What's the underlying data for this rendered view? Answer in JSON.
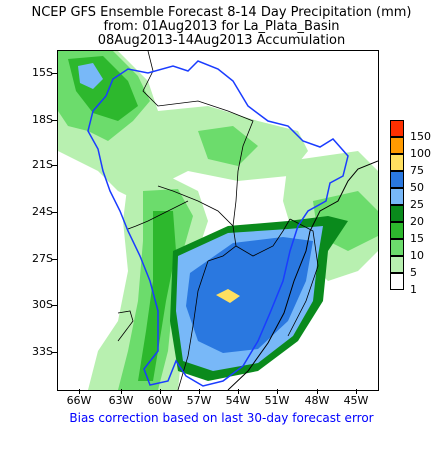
{
  "header": {
    "line1": "NCEP GFS Ensemble Forecast 8-14 Day Precipitation (mm)",
    "line2": "from: 01Aug2013   for La_Plata_Basin",
    "line3": "08Aug2013-14Aug2013 Accumulation"
  },
  "axes": {
    "lat_labels": [
      "15S",
      "18S",
      "21S",
      "24S",
      "27S",
      "30S",
      "33S"
    ],
    "lon_labels": [
      "66W",
      "63W",
      "60W",
      "57W",
      "54W",
      "51W",
      "48W",
      "45W"
    ]
  },
  "legend": {
    "items": [
      {
        "label": "150",
        "color": "#ff3000"
      },
      {
        "label": "100",
        "color": "#ff9a00"
      },
      {
        "label": "75",
        "color": "#ffe060"
      },
      {
        "label": "50",
        "color": "#2a78e0"
      },
      {
        "label": "25",
        "color": "#78b8f8"
      },
      {
        "label": "20",
        "color": "#0a8a1c"
      },
      {
        "label": "15",
        "color": "#2db82d"
      },
      {
        "label": "10",
        "color": "#6cdc6c"
      },
      {
        "label": "5",
        "color": "#b8f0b0"
      },
      {
        "label": "1",
        "color": "#ffffff"
      }
    ]
  },
  "footer": {
    "note": "Bias correction based on last 30-day forecast error"
  }
}
